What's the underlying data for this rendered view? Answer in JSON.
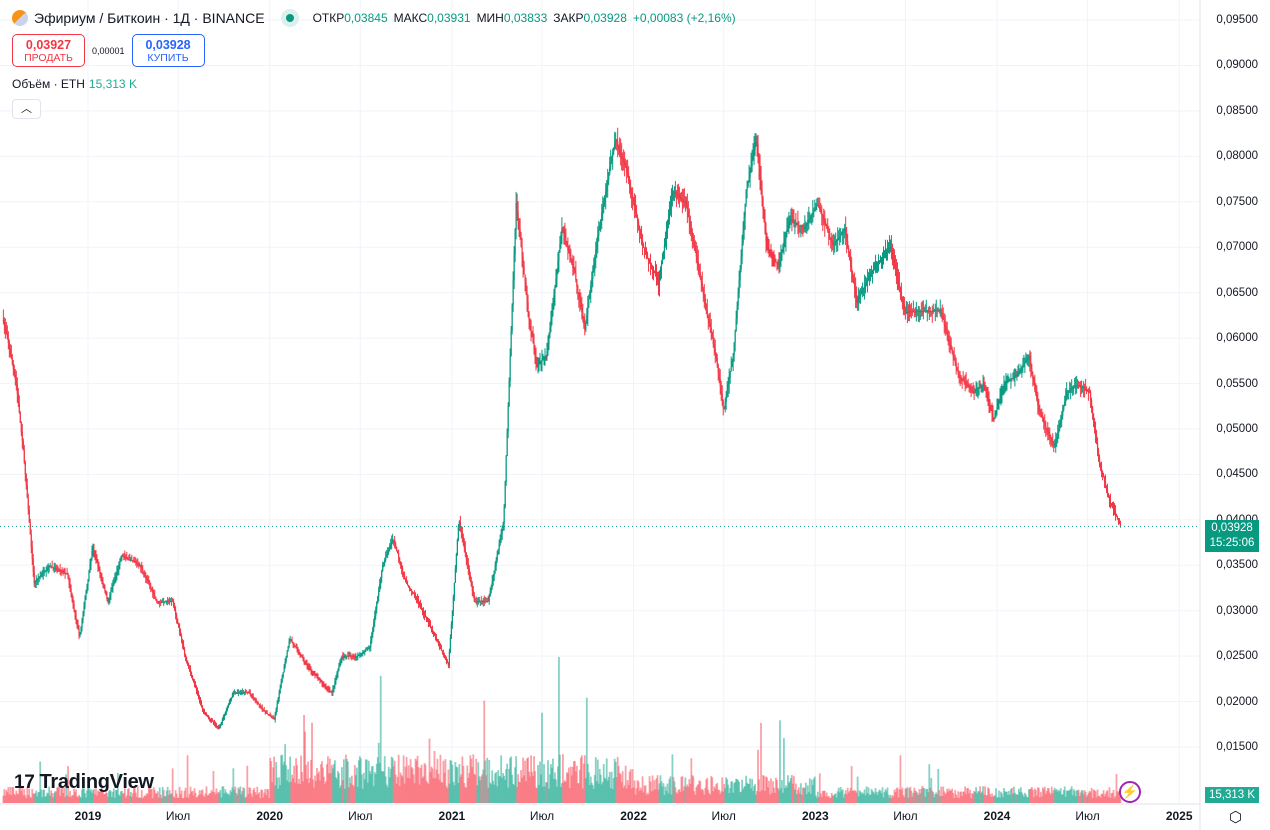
{
  "header": {
    "symbol": "Эфириум / Биткоин · 1Д · BINANCE",
    "open_label": "ОТКР",
    "open": "0,03845",
    "high_label": "МАКС",
    "high": "0,03931",
    "low_label": "МИН",
    "low": "0,03833",
    "close_label": "ЗАКР",
    "close": "0,03928",
    "change": "+0,00083 (+2,16%)"
  },
  "trade": {
    "sell_price": "0,03927",
    "sell_label": "ПРОДАТЬ",
    "spread": "0,00001",
    "buy_price": "0,03928",
    "buy_label": "КУПИТЬ"
  },
  "volume": {
    "label": "Объём · ETH",
    "value": "15,313 K",
    "tag": "15,313 K"
  },
  "collapse_icon": "chevron-up-icon",
  "price_tag": {
    "price": "0,03928",
    "countdown": "15:25:06"
  },
  "brand": "TradingView",
  "colors": {
    "up": "#089981",
    "down": "#f23645",
    "vol_up": "#22ab94",
    "vol_down": "#f7525f",
    "grid": "#f0f3fa"
  },
  "chart_data": {
    "type": "candlestick",
    "y_ticks": [
      "0,01500",
      "0,02000",
      "0,02500",
      "0,03000",
      "0,03500",
      "0,04000",
      "0,04500",
      "0,05000",
      "0,05500",
      "0,06000",
      "0,06500",
      "0,07000",
      "0,07500",
      "0,08000",
      "0,08500",
      "0,09000",
      "0,09500"
    ],
    "ylim": [
      0.0125,
      0.0965
    ],
    "x_ticks": [
      {
        "label": "2019",
        "date": "2019-01-01"
      },
      {
        "label": "Июл",
        "date": "2019-07-01"
      },
      {
        "label": "2020",
        "date": "2020-01-01"
      },
      {
        "label": "Июл",
        "date": "2020-07-01"
      },
      {
        "label": "2021",
        "date": "2021-01-01"
      },
      {
        "label": "Июл",
        "date": "2021-07-01"
      },
      {
        "label": "2022",
        "date": "2022-01-01"
      },
      {
        "label": "Июл",
        "date": "2022-07-01"
      },
      {
        "label": "2023",
        "date": "2023-01-01"
      },
      {
        "label": "Июл",
        "date": "2023-07-01"
      },
      {
        "label": "2024",
        "date": "2024-01-01"
      },
      {
        "label": "Июл",
        "date": "2024-07-01"
      },
      {
        "label": "2025",
        "date": "2025-01-01"
      }
    ],
    "last_price": 0.03928,
    "close_approx": [
      [
        "2018-07-15",
        0.062
      ],
      [
        "2018-08-10",
        0.055
      ],
      [
        "2018-08-25",
        0.047
      ],
      [
        "2018-09-15",
        0.033
      ],
      [
        "2018-10-15",
        0.035
      ],
      [
        "2018-11-20",
        0.034
      ],
      [
        "2018-12-15",
        0.027
      ],
      [
        "2019-01-10",
        0.037
      ],
      [
        "2019-02-10",
        0.031
      ],
      [
        "2019-03-10",
        0.036
      ],
      [
        "2019-04-15",
        0.035
      ],
      [
        "2019-05-20",
        0.031
      ],
      [
        "2019-06-20",
        0.031
      ],
      [
        "2019-07-15",
        0.025
      ],
      [
        "2019-08-20",
        0.019
      ],
      [
        "2019-09-20",
        0.017
      ],
      [
        "2019-10-20",
        0.021
      ],
      [
        "2019-11-20",
        0.021
      ],
      [
        "2019-12-20",
        0.019
      ],
      [
        "2020-01-10",
        0.018
      ],
      [
        "2020-02-10",
        0.027
      ],
      [
        "2020-03-15",
        0.024
      ],
      [
        "2020-04-15",
        0.022
      ],
      [
        "2020-05-05",
        0.021
      ],
      [
        "2020-05-25",
        0.025
      ],
      [
        "2020-06-25",
        0.025
      ],
      [
        "2020-07-20",
        0.026
      ],
      [
        "2020-08-15",
        0.035
      ],
      [
        "2020-09-05",
        0.038
      ],
      [
        "2020-10-01",
        0.033
      ],
      [
        "2020-10-25",
        0.031
      ],
      [
        "2020-11-20",
        0.028
      ],
      [
        "2020-12-25",
        0.024
      ],
      [
        "2021-01-15",
        0.04
      ],
      [
        "2021-02-15",
        0.031
      ],
      [
        "2021-03-15",
        0.031
      ],
      [
        "2021-04-15",
        0.04
      ],
      [
        "2021-05-10",
        0.075
      ],
      [
        "2021-06-05",
        0.062
      ],
      [
        "2021-06-20",
        0.057
      ],
      [
        "2021-07-10",
        0.058
      ],
      [
        "2021-08-10",
        0.072
      ],
      [
        "2021-09-05",
        0.067
      ],
      [
        "2021-09-25",
        0.061
      ],
      [
        "2021-10-20",
        0.071
      ],
      [
        "2021-11-25",
        0.082
      ],
      [
        "2021-12-20",
        0.078
      ],
      [
        "2022-01-20",
        0.07
      ],
      [
        "2022-02-20",
        0.066
      ],
      [
        "2022-03-20",
        0.076
      ],
      [
        "2022-04-15",
        0.075
      ],
      [
        "2022-05-10",
        0.068
      ],
      [
        "2022-06-15",
        0.058
      ],
      [
        "2022-07-01",
        0.052
      ],
      [
        "2022-07-20",
        0.058
      ],
      [
        "2022-08-15",
        0.076
      ],
      [
        "2022-09-05",
        0.082
      ],
      [
        "2022-09-25",
        0.07
      ],
      [
        "2022-10-20",
        0.068
      ],
      [
        "2022-11-10",
        0.073
      ],
      [
        "2022-12-10",
        0.072
      ],
      [
        "2023-01-05",
        0.075
      ],
      [
        "2023-02-05",
        0.07
      ],
      [
        "2023-03-01",
        0.072
      ],
      [
        "2023-03-25",
        0.064
      ],
      [
        "2023-05-01",
        0.068
      ],
      [
        "2023-06-01",
        0.07
      ],
      [
        "2023-07-01",
        0.063
      ],
      [
        "2023-08-10",
        0.063
      ],
      [
        "2023-09-10",
        0.063
      ],
      [
        "2023-10-15",
        0.056
      ],
      [
        "2023-11-15",
        0.054
      ],
      [
        "2023-12-05",
        0.055
      ],
      [
        "2023-12-25",
        0.051
      ],
      [
        "2024-01-15",
        0.055
      ],
      [
        "2024-02-10",
        0.056
      ],
      [
        "2024-03-05",
        0.058
      ],
      [
        "2024-03-25",
        0.052
      ],
      [
        "2024-04-25",
        0.048
      ],
      [
        "2024-05-20",
        0.054
      ],
      [
        "2024-06-10",
        0.055
      ],
      [
        "2024-07-05",
        0.054
      ],
      [
        "2024-07-25",
        0.046
      ],
      [
        "2024-08-15",
        0.042
      ],
      [
        "2024-09-05",
        0.03928
      ]
    ]
  }
}
